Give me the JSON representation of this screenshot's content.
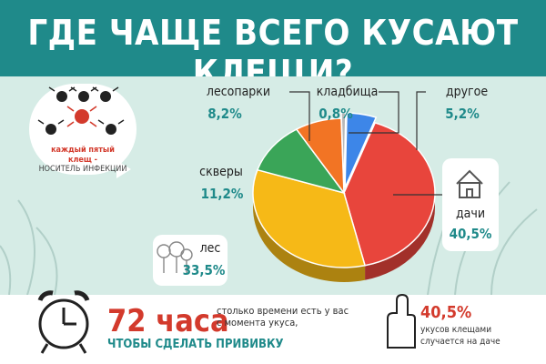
{
  "title": "ГДЕ ЧАЩЕ ВСЕГО КУСАЮТ КЛЕЩИ?",
  "bubble": {
    "red_text": "каждый пятый клещ -",
    "grey_text": "НОСИТЕЛЬ ИНФЕКЦИИ"
  },
  "bottom": {
    "hours": "72 часа",
    "hours_note": "столько времени есть у вас с момента укуса,",
    "hours_action": "ЧТОБЫ СДЕЛАТЬ ПРИВИВКУ",
    "dacha_pct": "40,5%",
    "dacha_note": "укусов клещами случается на даче"
  },
  "colors": {
    "teal": "#1f8a8a",
    "red": "#d33a2c"
  },
  "chart_data": {
    "type": "pie",
    "title": "ГДЕ ЧАЩЕ ВСЕГО КУСАЮТ КЛЕЩИ?",
    "slices": [
      {
        "label": "дачи",
        "value": 40.5,
        "display": "40,5%",
        "color": "#e8453c"
      },
      {
        "label": "лес",
        "value": 33.5,
        "display": "33,5%",
        "color": "#f6b917"
      },
      {
        "label": "скверы",
        "value": 11.2,
        "display": "11,2%",
        "color": "#3aa558"
      },
      {
        "label": "лесопарки",
        "value": 8.2,
        "display": "8,2%",
        "color": "#f27424"
      },
      {
        "label": "кладбища",
        "value": 0.8,
        "display": "0,8%",
        "color": "#b9b9b9"
      },
      {
        "label": "другое",
        "value": 5.2,
        "display": "5,2%",
        "color": "#3d86e8"
      }
    ]
  }
}
